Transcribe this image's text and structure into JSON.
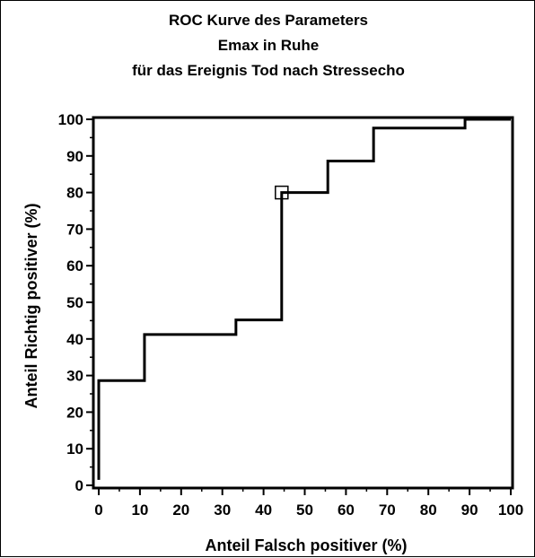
{
  "chart_data": {
    "type": "line",
    "title_lines": [
      "ROC Kurve des Parameters",
      "Emax in Ruhe",
      "für das Ereignis Tod nach Stressecho"
    ],
    "xlabel": "Anteil Falsch positiver (%)",
    "ylabel": "Anteil Richtig positiver (%)",
    "xlim": [
      0,
      100
    ],
    "ylim": [
      0,
      100
    ],
    "xticks": [
      0,
      10,
      20,
      30,
      40,
      50,
      60,
      70,
      80,
      90,
      100
    ],
    "yticks": [
      0,
      10,
      20,
      30,
      40,
      50,
      60,
      70,
      80,
      90,
      100
    ],
    "grid": false,
    "series": [
      {
        "x": [
          0,
          0,
          11.1,
          11.1,
          33.3,
          33.3,
          44.4,
          44.4,
          55.6,
          55.6,
          66.7,
          66.7,
          88.9,
          88.9,
          100
        ],
        "y": [
          1.5,
          28.6,
          28.6,
          41.2,
          41.2,
          45.2,
          45.2,
          80.0,
          80.0,
          88.6,
          88.6,
          97.6,
          97.6,
          100,
          100
        ]
      }
    ],
    "marker": {
      "shape": "square",
      "x": 44.4,
      "y": 80.0
    }
  }
}
